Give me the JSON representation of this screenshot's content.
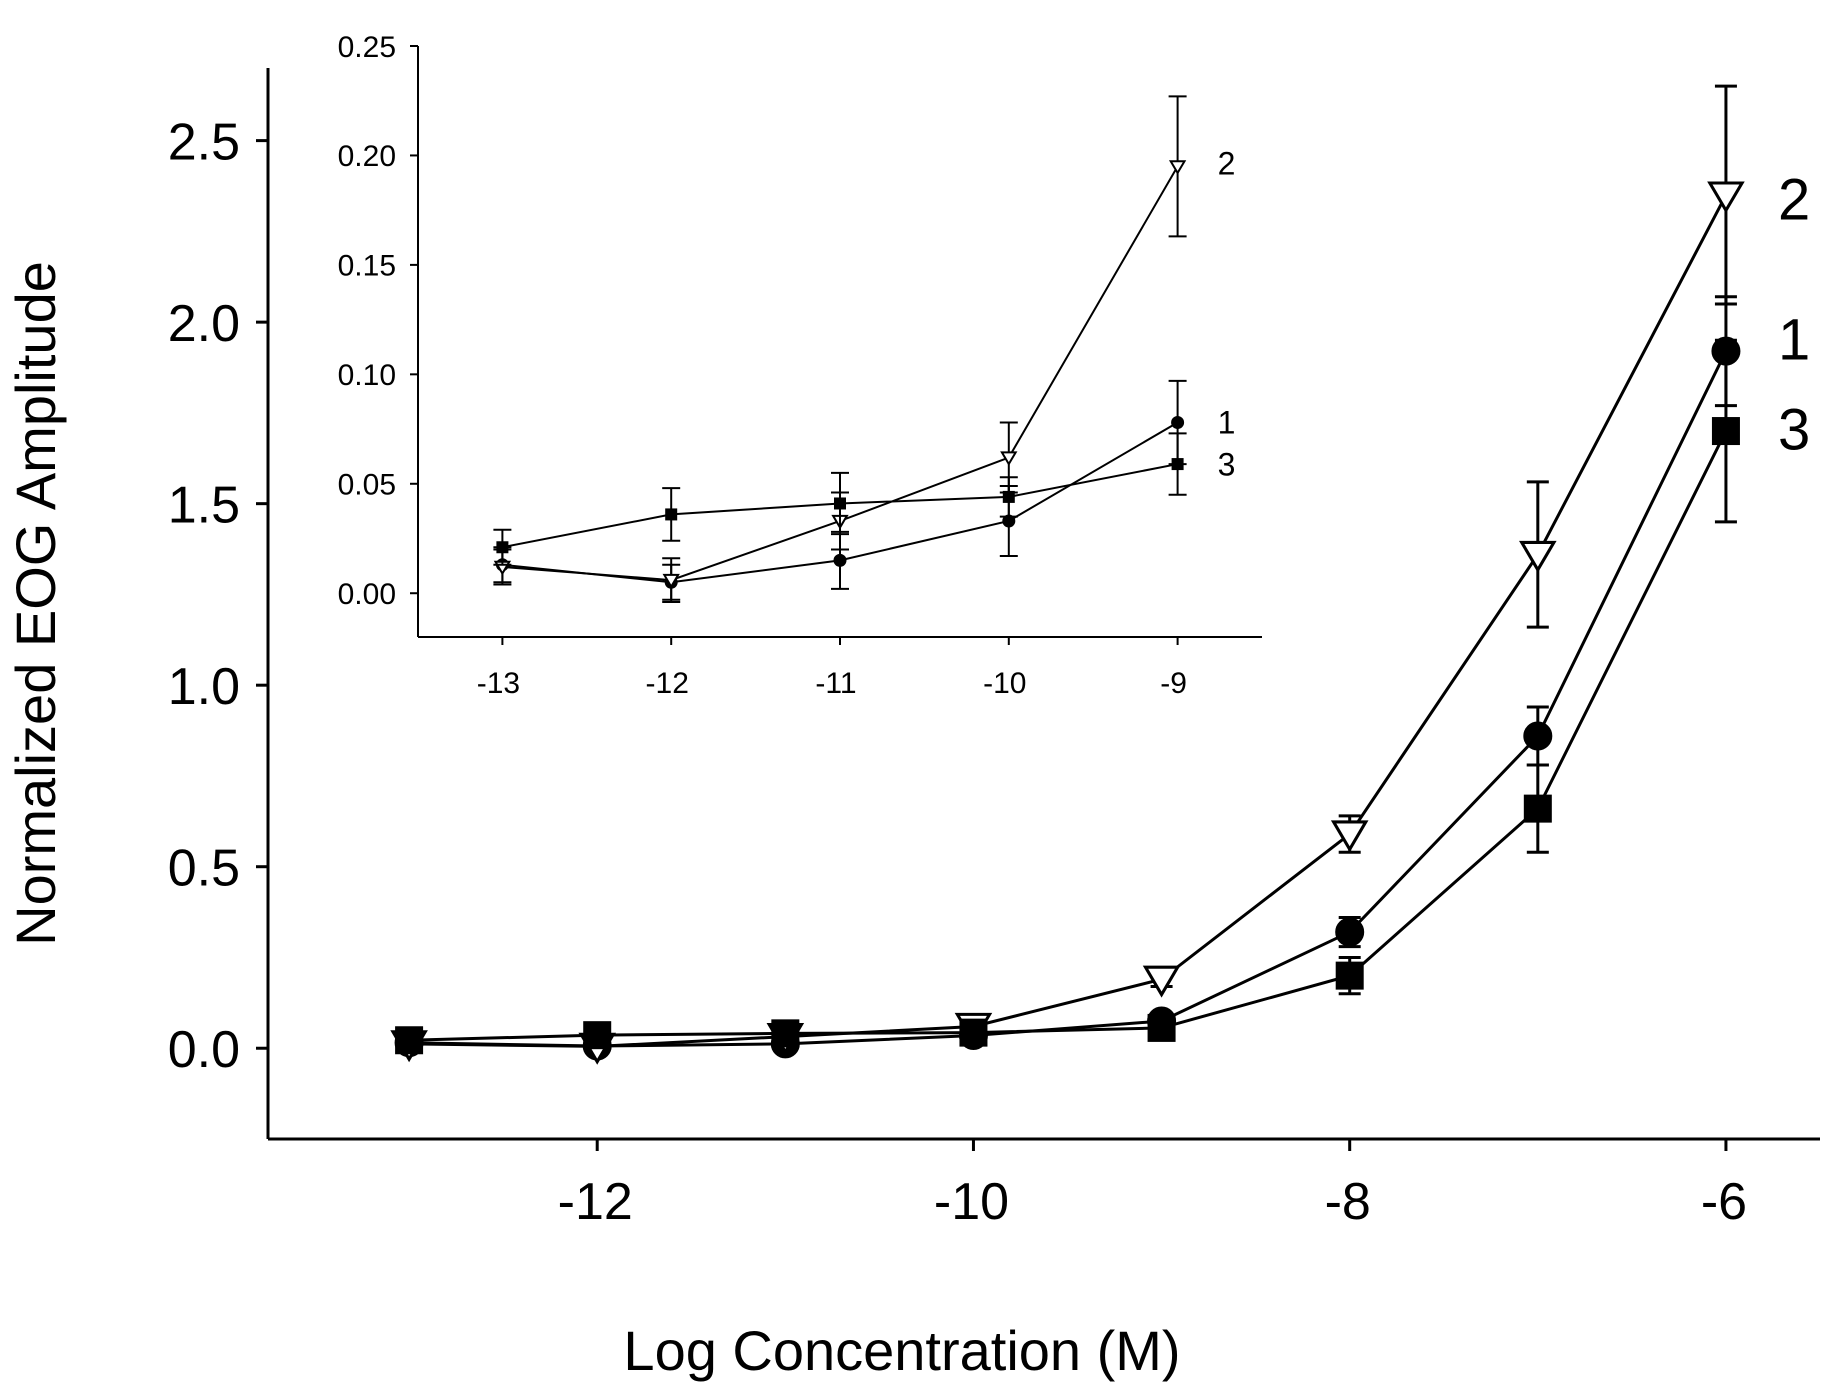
{
  "chart_data": [
    {
      "id": "main",
      "type": "line",
      "title": "",
      "xlabel": "Log Concentration (M)",
      "ylabel": "Normalized EOG Amplitude",
      "xlim": [
        -13.75,
        -5.5
      ],
      "ylim": [
        -0.25,
        2.7
      ],
      "xticks": [
        -12,
        -10,
        -8,
        -6
      ],
      "yticks": [
        0.0,
        0.5,
        1.0,
        1.5,
        2.0,
        2.5
      ],
      "xtick_labels": [
        "-12",
        "-10",
        "-8",
        "-6"
      ],
      "ytick_labels": [
        "0.0",
        "0.5",
        "1.0",
        "1.5",
        "2.0",
        "2.5"
      ],
      "x": [
        -13,
        -12,
        -11,
        -10,
        -9,
        -8,
        -7,
        -6
      ],
      "series": [
        {
          "name": "1",
          "marker": "circle",
          "values": [
            0.015,
            0.006,
            0.012,
            0.035,
            0.075,
            0.32,
            0.86,
            1.92
          ],
          "errors": [
            0.01,
            0.01,
            0.01,
            0.01,
            0.01,
            0.04,
            0.08,
            0.15
          ]
        },
        {
          "name": "2",
          "marker": "triangle-down",
          "values": [
            0.012,
            0.005,
            0.032,
            0.06,
            0.19,
            0.59,
            1.36,
            2.35
          ],
          "errors": [
            0.01,
            0.01,
            0.01,
            0.01,
            0.02,
            0.05,
            0.2,
            0.3
          ]
        },
        {
          "name": "3",
          "marker": "square",
          "values": [
            0.022,
            0.036,
            0.041,
            0.043,
            0.056,
            0.2,
            0.66,
            1.7
          ],
          "errors": [
            0.01,
            0.01,
            0.01,
            0.01,
            0.01,
            0.05,
            0.12,
            0.25
          ]
        }
      ]
    },
    {
      "id": "inset",
      "type": "line",
      "title": "",
      "xlabel": "",
      "ylabel": "",
      "xlim": [
        -13.5,
        -8.5
      ],
      "ylim": [
        -0.02,
        0.25
      ],
      "xticks": [
        -13,
        -12,
        -11,
        -10,
        -9
      ],
      "yticks": [
        0.0,
        0.05,
        0.1,
        0.15,
        0.2,
        0.25
      ],
      "xtick_labels": [
        "-13",
        "-12",
        "-11",
        "-10",
        "-9"
      ],
      "ytick_labels": [
        "0.00",
        "0.05",
        "0.10",
        "0.15",
        "0.20",
        "0.25"
      ],
      "x": [
        -13,
        -12,
        -11,
        -10,
        -9
      ],
      "series": [
        {
          "name": "1",
          "marker": "circle",
          "values": [
            0.013,
            0.005,
            0.015,
            0.033,
            0.078
          ],
          "errors": [
            0.008,
            0.008,
            0.013,
            0.016,
            0.019
          ]
        },
        {
          "name": "2",
          "marker": "triangle-down",
          "values": [
            0.012,
            0.006,
            0.033,
            0.062,
            0.195
          ],
          "errors": [
            0.008,
            0.01,
            0.013,
            0.016,
            0.032
          ]
        },
        {
          "name": "3",
          "marker": "square",
          "values": [
            0.021,
            0.036,
            0.041,
            0.044,
            0.059
          ],
          "errors": [
            0.008,
            0.012,
            0.014,
            0.009,
            0.014
          ]
        }
      ]
    }
  ]
}
